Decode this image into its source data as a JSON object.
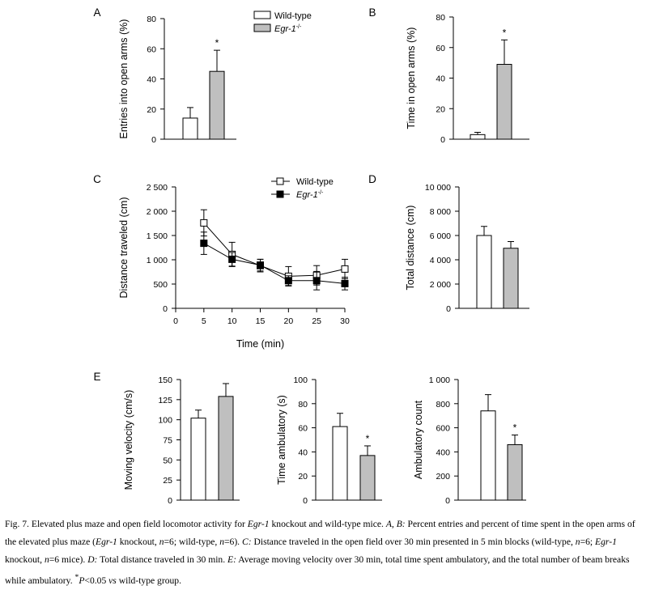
{
  "figure": {
    "caption": [
      {
        "t": "Fig. 7.  Elevated plus maze and open field locomotor activity for "
      },
      {
        "t": "Egr-1",
        "i": true
      },
      {
        "t": " knockout and wild-type mice. "
      },
      {
        "t": "A, B:",
        "i": true
      },
      {
        "t": "  Percent entries and percent of time spent in the open arms of the elevated plus maze ("
      },
      {
        "t": "Egr-1",
        "i": true
      },
      {
        "t": " knockout, "
      },
      {
        "t": "n",
        "i": true
      },
      {
        "t": "=6; wild-type, "
      },
      {
        "t": "n",
        "i": true
      },
      {
        "t": "=6). "
      },
      {
        "t": "C:",
        "i": true
      },
      {
        "t": " Distance traveled in the open field over 30 min presented in 5 min blocks (wild-type, "
      },
      {
        "t": "n",
        "i": true
      },
      {
        "t": "=6; "
      },
      {
        "t": "Egr-1",
        "i": true
      },
      {
        "t": " knockout, "
      },
      {
        "t": "n",
        "i": true
      },
      {
        "t": "=6 mice). "
      },
      {
        "t": "D:",
        "i": true
      },
      {
        "t": "  Total distance traveled in 30 min. "
      },
      {
        "t": "E:",
        "i": true
      },
      {
        "t": " Average moving velocity over 30 min, total time spent ambulatory, and the total number of beam breaks while ambulatory. "
      },
      {
        "t": "*",
        "sup": true
      },
      {
        "t": "P",
        "i": true
      },
      {
        "t": "<0.05 "
      },
      {
        "t": "vs",
        "i": true
      },
      {
        "t": " wild-type group."
      }
    ]
  },
  "chart_data": [
    {
      "panel": "A",
      "type": "bar",
      "ylabel": "Entries into open arms (%)",
      "ylim": [
        0,
        80
      ],
      "yticks": [
        0,
        20,
        40,
        60,
        80
      ],
      "ytick_labels": [
        "0",
        "20",
        "40",
        "60",
        "80"
      ],
      "series": [
        {
          "name": "Wild-type",
          "fill": "#ffffff",
          "value": 14,
          "error": 7,
          "sig": ""
        },
        {
          "name": "Egr-1-/-",
          "fill": "#bfbfbf",
          "value": 45,
          "error": 14,
          "sig": "*"
        }
      ],
      "legend": {
        "placement": "top-right",
        "entries": [
          "Wild-type",
          "Egr-1"
        ]
      }
    },
    {
      "panel": "B",
      "type": "bar",
      "ylabel": "Time in open arms (%)",
      "ylim": [
        0,
        80
      ],
      "yticks": [
        0,
        20,
        40,
        60,
        80
      ],
      "ytick_labels": [
        "0",
        "20",
        "40",
        "60",
        "80"
      ],
      "series": [
        {
          "name": "Wild-type",
          "fill": "#ffffff",
          "value": 3,
          "error": 1.5,
          "sig": ""
        },
        {
          "name": "Egr-1-/-",
          "fill": "#bfbfbf",
          "value": 49,
          "error": 16,
          "sig": "*"
        }
      ]
    },
    {
      "panel": "C",
      "type": "line",
      "xlabel": "Time (min)",
      "ylabel": "Distance traveled (cm)",
      "xlim": [
        0,
        30
      ],
      "xticks": [
        0,
        5,
        10,
        15,
        20,
        25,
        30
      ],
      "xtick_labels": [
        "0",
        "5",
        "10",
        "15",
        "20",
        "25",
        "30"
      ],
      "ylim": [
        0,
        2500
      ],
      "yticks": [
        0,
        500,
        1000,
        1500,
        2000,
        2500
      ],
      "ytick_labels": [
        "0",
        "500",
        "1 000",
        "1 500",
        "2 000",
        "2 500"
      ],
      "x": [
        5,
        10,
        15,
        20,
        25,
        30
      ],
      "series": [
        {
          "name": "Wild-type",
          "marker": "open-square",
          "values": [
            1760,
            1110,
            880,
            660,
            680,
            810
          ],
          "errors": [
            270,
            250,
            130,
            200,
            200,
            200
          ]
        },
        {
          "name": "Egr-1-/-",
          "marker": "filled-square",
          "values": [
            1340,
            1010,
            890,
            570,
            570,
            510
          ],
          "errors": [
            230,
            140,
            120,
            100,
            190,
            130
          ]
        }
      ],
      "legend": {
        "placement": "top-right",
        "entries": [
          "Wild-type",
          "Egr-1"
        ]
      }
    },
    {
      "panel": "D",
      "type": "bar",
      "ylabel": "Total distance (cm)",
      "ylim": [
        0,
        10000
      ],
      "yticks": [
        0,
        2000,
        4000,
        6000,
        8000,
        10000
      ],
      "ytick_labels": [
        "0",
        "2 000",
        "4 000",
        "6 000",
        "8 000",
        "10 000"
      ],
      "series": [
        {
          "name": "Wild-type",
          "fill": "#ffffff",
          "value": 6000,
          "error": 750,
          "sig": ""
        },
        {
          "name": "Egr-1-/-",
          "fill": "#bfbfbf",
          "value": 4950,
          "error": 550,
          "sig": ""
        }
      ]
    },
    {
      "panel": "E",
      "type": "bar",
      "ylabel": "Moving velocity (cm/s)",
      "ylim": [
        0,
        150
      ],
      "yticks": [
        0,
        25,
        50,
        75,
        100,
        125,
        150
      ],
      "ytick_labels": [
        "0",
        "25",
        "50",
        "75",
        "100",
        "125",
        "150"
      ],
      "series": [
        {
          "name": "Wild-type",
          "fill": "#ffffff",
          "value": 102,
          "error": 10,
          "sig": ""
        },
        {
          "name": "Egr-1-/-",
          "fill": "#bfbfbf",
          "value": 129,
          "error": 16,
          "sig": ""
        }
      ]
    },
    {
      "panel": "",
      "type": "bar",
      "ylabel": "Time ambulatory (s)",
      "ylim": [
        0,
        100
      ],
      "yticks": [
        0,
        20,
        40,
        60,
        80,
        100
      ],
      "ytick_labels": [
        "0",
        "20",
        "40",
        "60",
        "80",
        "100"
      ],
      "series": [
        {
          "name": "Wild-type",
          "fill": "#ffffff",
          "value": 61,
          "error": 11,
          "sig": ""
        },
        {
          "name": "Egr-1-/-",
          "fill": "#bfbfbf",
          "value": 37,
          "error": 8,
          "sig": "*"
        }
      ]
    },
    {
      "panel": "",
      "type": "bar",
      "ylabel": "Ambulatory count",
      "ylim": [
        0,
        1000
      ],
      "yticks": [
        0,
        200,
        400,
        600,
        800,
        1000
      ],
      "ytick_labels": [
        "0",
        "200",
        "400",
        "600",
        "800",
        "1 000"
      ],
      "series": [
        {
          "name": "Wild-type",
          "fill": "#ffffff",
          "value": 740,
          "error": 135,
          "sig": ""
        },
        {
          "name": "Egr-1-/-",
          "fill": "#bfbfbf",
          "value": 460,
          "error": 80,
          "sig": "*"
        }
      ]
    }
  ]
}
